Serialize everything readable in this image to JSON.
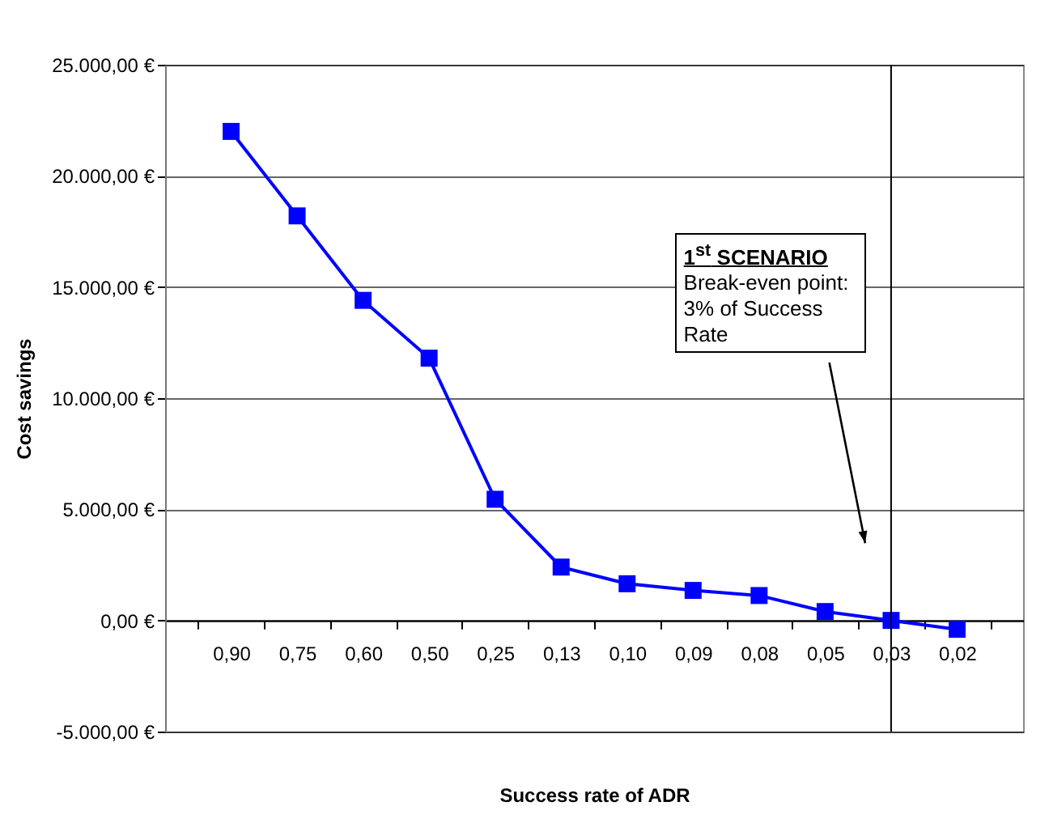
{
  "chart_data": {
    "type": "line",
    "xlabel": "Success rate of ADR",
    "ylabel": "Cost savings",
    "categories": [
      "0,90",
      "0,75",
      "0,60",
      "0,50",
      "0,25",
      "0,13",
      "0,10",
      "0,09",
      "0,08",
      "0,05",
      "0,03",
      "0,02"
    ],
    "series": [
      {
        "color": "#0000ff",
        "values": [
          22000,
          18200,
          14400,
          11800,
          5450,
          2400,
          1650,
          1350,
          1120,
          400,
          0,
          -400
        ]
      }
    ],
    "ylim": [
      -5000,
      25000
    ],
    "yticks": [
      {
        "value": -5000,
        "label": "-5.000,00 €"
      },
      {
        "value": 0,
        "label": "0,00 €"
      },
      {
        "value": 5000,
        "label": "5.000,00 €"
      },
      {
        "value": 10000,
        "label": "10.000,00 €"
      },
      {
        "value": 15000,
        "label": "15.000,00 €"
      },
      {
        "value": 20000,
        "label": "20.000,00 €"
      },
      {
        "value": 25000,
        "label": "25.000,00 €"
      }
    ],
    "grid": "y",
    "marker": "square",
    "line_style": "solid",
    "ref_lines": [
      {
        "axis": "x",
        "value": "0,03",
        "color": "#000000"
      }
    ],
    "annotations": [
      "1$^{st}$ SCENARIO",
      "Break-even point: 3% of Success Rate"
    ]
  }
}
